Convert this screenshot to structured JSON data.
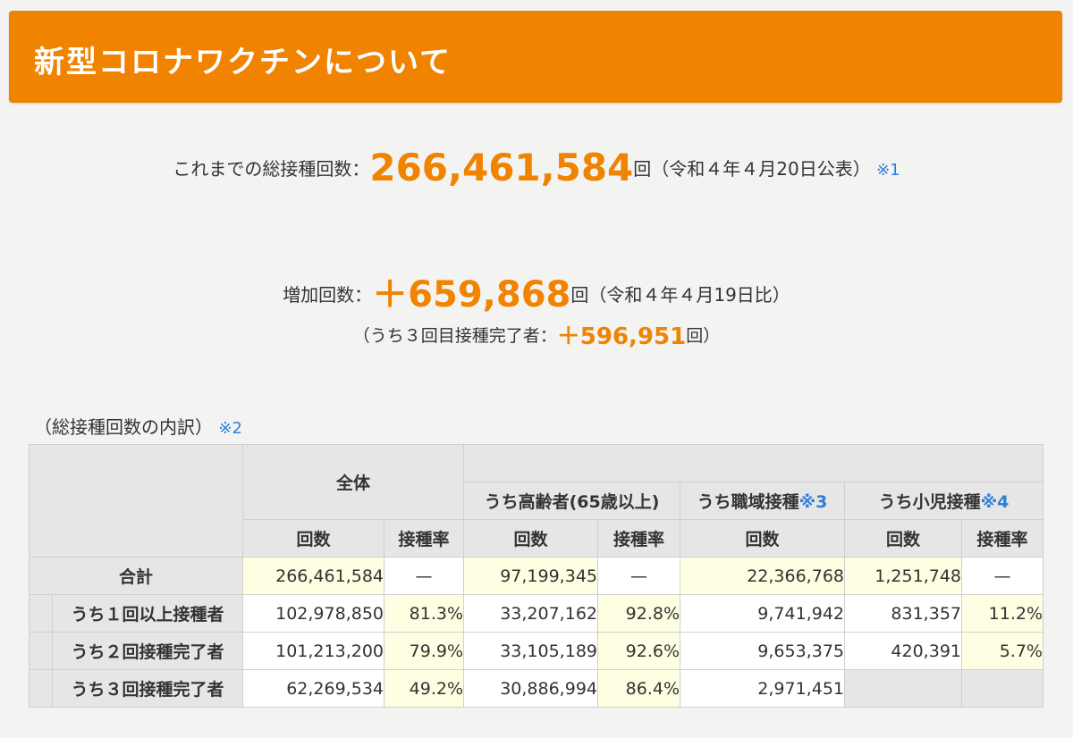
{
  "banner": {
    "title": "新型コロナワクチンについて"
  },
  "summary": {
    "total_prefix": "これまでの総接種回数：",
    "total_value": "266,461,584",
    "total_suffix": "回（令和４年４月20日公表）",
    "total_note": "※1",
    "increase_prefix": "増加回数：",
    "increase_value": "＋659,868",
    "increase_suffix": "回（令和４年４月19日比）",
    "third_prefix": "（うち３回目接種完了者：",
    "third_value": "＋596,951",
    "third_suffix": "回）"
  },
  "breakdown": {
    "label": "（総接種回数の内訳）",
    "note": "※2",
    "headers": {
      "all": "全体",
      "elderly": "うち高齢者(65歳以上)",
      "workplace": "うち職域接種",
      "workplace_note": "※3",
      "children": "うち小児接種",
      "children_note": "※4",
      "count": "回数",
      "rate": "接種率"
    },
    "rows": [
      {
        "label": "合計",
        "all_count": "266,461,584",
        "all_rate": "—",
        "elderly_count": "97,199,345",
        "elderly_rate": "—",
        "workplace_count": "22,366,768",
        "children_count": "1,251,748",
        "children_rate": "—"
      },
      {
        "label": "うち１回以上接種者",
        "all_count": "102,978,850",
        "all_rate": "81.3%",
        "elderly_count": "33,207,162",
        "elderly_rate": "92.8%",
        "workplace_count": "9,741,942",
        "children_count": "831,357",
        "children_rate": "11.2%"
      },
      {
        "label": "うち２回接種完了者",
        "all_count": "101,213,200",
        "all_rate": "79.9%",
        "elderly_count": "33,105,189",
        "elderly_rate": "92.6%",
        "workplace_count": "9,653,375",
        "children_count": "420,391",
        "children_rate": "5.7%"
      },
      {
        "label": "うち３回接種完了者",
        "all_count": "62,269,534",
        "all_rate": "49.2%",
        "elderly_count": "30,886,994",
        "elderly_rate": "86.4%",
        "workplace_count": "2,971,451",
        "children_count": "",
        "children_rate": ""
      }
    ]
  }
}
